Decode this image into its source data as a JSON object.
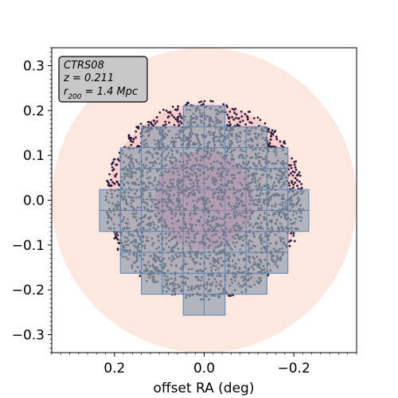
{
  "chart_data": {
    "type": "scatter",
    "title": "",
    "xlabel": "offset RA (deg)",
    "ylabel": "",
    "xlim": [
      0.34,
      -0.34
    ],
    "ylim": [
      -0.34,
      0.34
    ],
    "x_inverted": true,
    "xticks": [
      0.2,
      0.0,
      -0.2
    ],
    "xtick_labels": [
      "0.2",
      "0.0",
      "−0.2"
    ],
    "yticks": [
      0.3,
      0.2,
      0.1,
      0.0,
      -0.1,
      -0.2,
      -0.3
    ],
    "ytick_labels": [
      "0.3",
      "0.2",
      "0.1",
      "0.0",
      "−0.1",
      "−0.2",
      "−0.3"
    ],
    "minor_ticks": true,
    "grid": false,
    "annotation": {
      "lines": [
        "CTRS08",
        "z = 0.211",
        "r200 = 1.4 Mpc"
      ],
      "location": "top-left"
    },
    "regions": {
      "outer_circle_radius_deg": 0.34,
      "outer_circle_color": "#fce5dc",
      "middle_circle_radius_deg": 0.215,
      "middle_circle_color": "#f8c7c7",
      "inner_circle_radius_deg": 0.11,
      "inner_circle_color": "#b38aa8"
    },
    "series": [
      {
        "name": "",
        "color": "#2d1c3f",
        "description_points": "all galaxies within ~0.22 deg"
      },
      {
        "name": "",
        "color": "#6e7b8c",
        "description_points": "galaxies within survey tiles"
      }
    ],
    "tiles": {
      "size_deg": 0.0467,
      "fill": "#9aa4b1",
      "edge": "#5b86b8",
      "rows": [
        {
          "y": 0.2105,
          "x_start": 0.0467,
          "n": 2
        },
        {
          "y": 0.1638,
          "x_start": 0.1401,
          "n": 6
        },
        {
          "y": 0.1171,
          "x_start": 0.1868,
          "n": 8
        },
        {
          "y": 0.0704,
          "x_start": 0.1868,
          "n": 8
        },
        {
          "y": 0.0237,
          "x_start": 0.2335,
          "n": 10
        },
        {
          "y": -0.023,
          "x_start": 0.2335,
          "n": 10
        },
        {
          "y": -0.0697,
          "x_start": 0.1868,
          "n": 8
        },
        {
          "y": -0.1164,
          "x_start": 0.1868,
          "n": 8
        },
        {
          "y": -0.1631,
          "x_start": 0.1401,
          "n": 6
        },
        {
          "y": -0.2098,
          "x_start": 0.0467,
          "n": 2
        }
      ]
    },
    "points": {
      "n_total": 2600,
      "max_radius_deg": 0.222
    }
  }
}
